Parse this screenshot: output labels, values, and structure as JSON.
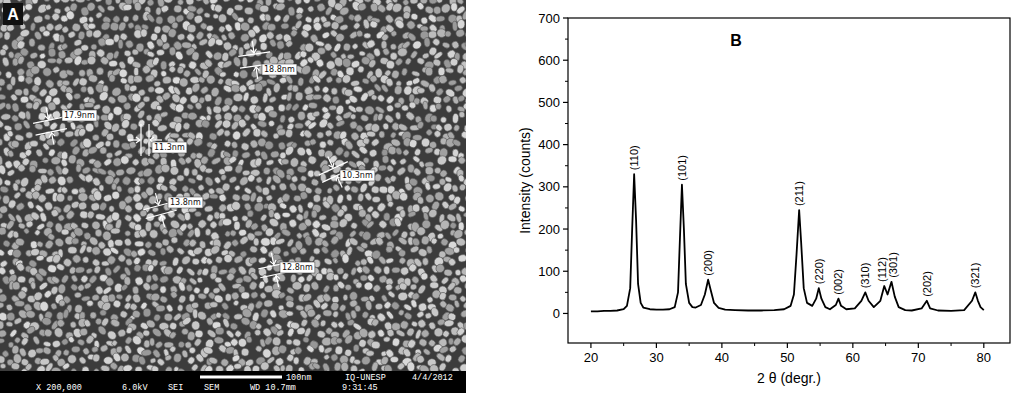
{
  "chart_data": {
    "type": "line",
    "title": "B",
    "x_label": "2 θ (degr.)",
    "y_label": "Intensity (counts)",
    "xlim": [
      16.5,
      84
    ],
    "ylim": [
      -70,
      700
    ],
    "xticks": [
      20,
      30,
      40,
      50,
      60,
      70,
      80
    ],
    "yticks": [
      0,
      100,
      200,
      300,
      400,
      500,
      600,
      700
    ],
    "grid": false,
    "color": "#000000",
    "x": [
      20,
      21,
      22,
      23,
      24,
      25,
      25.5,
      26,
      26.3,
      26.6,
      26.9,
      27.2,
      27.6,
      28,
      29,
      30,
      31,
      32,
      32.8,
      33.3,
      33.6,
      33.9,
      34.2,
      34.5,
      35,
      35.5,
      36,
      36.8,
      37.4,
      37.9,
      38.3,
      38.8,
      39.5,
      40.5,
      42,
      44,
      46,
      48,
      49.5,
      50.5,
      51,
      51.4,
      51.8,
      52.1,
      52.5,
      53,
      53.8,
      54.4,
      54.8,
      55.2,
      55.8,
      56.5,
      57.4,
      57.8,
      58.2,
      59,
      60.3,
      61.3,
      61.9,
      62.4,
      63.2,
      64.2,
      64.8,
      65.3,
      65.9,
      66.4,
      67,
      68,
      69,
      70.5,
      71.3,
      71.8,
      73,
      75,
      77,
      78.2,
      78.7,
      79.1,
      79.5,
      80
    ],
    "values": [
      5,
      5,
      6,
      6,
      7,
      10,
      18,
      60,
      200,
      330,
      220,
      70,
      25,
      14,
      10,
      9,
      9,
      10,
      15,
      50,
      180,
      305,
      200,
      70,
      25,
      15,
      14,
      20,
      45,
      80,
      55,
      25,
      13,
      9,
      8,
      7,
      7,
      8,
      10,
      18,
      45,
      140,
      245,
      170,
      60,
      25,
      18,
      35,
      60,
      35,
      15,
      10,
      20,
      35,
      18,
      10,
      12,
      30,
      50,
      30,
      15,
      30,
      65,
      45,
      75,
      40,
      15,
      8,
      7,
      12,
      30,
      12,
      7,
      6,
      8,
      30,
      50,
      30,
      15,
      8
    ],
    "annotations": [
      {
        "text": "(110)",
        "x": 26.6
      },
      {
        "text": "(101)",
        "x": 33.9
      },
      {
        "text": "(200)",
        "x": 37.9
      },
      {
        "text": "(211)",
        "x": 51.8
      },
      {
        "text": "(220)",
        "x": 54.8
      },
      {
        "text": "(002)",
        "x": 57.8
      },
      {
        "text": "(310)",
        "x": 61.9
      },
      {
        "text": "(112)",
        "x": 64.8
      },
      {
        "text": "(301)",
        "x": 65.9
      },
      {
        "text": "(202)",
        "x": 71.3
      },
      {
        "text": "(321)",
        "x": 78.7
      }
    ]
  },
  "micrograph": {
    "panel": "A",
    "measurements": [
      "17.9nm",
      "18.8nm",
      "11.3nm",
      "10.3nm",
      "13.8nm",
      "12.8nm"
    ],
    "info_bar": [
      [
        "100nm",
        "IQ-UNESP",
        "4/4/2012"
      ],
      [
        "X 200,000",
        "6.0kV",
        "SEI",
        "SEM",
        "WD 10.7mm",
        "9:31:45"
      ]
    ]
  }
}
